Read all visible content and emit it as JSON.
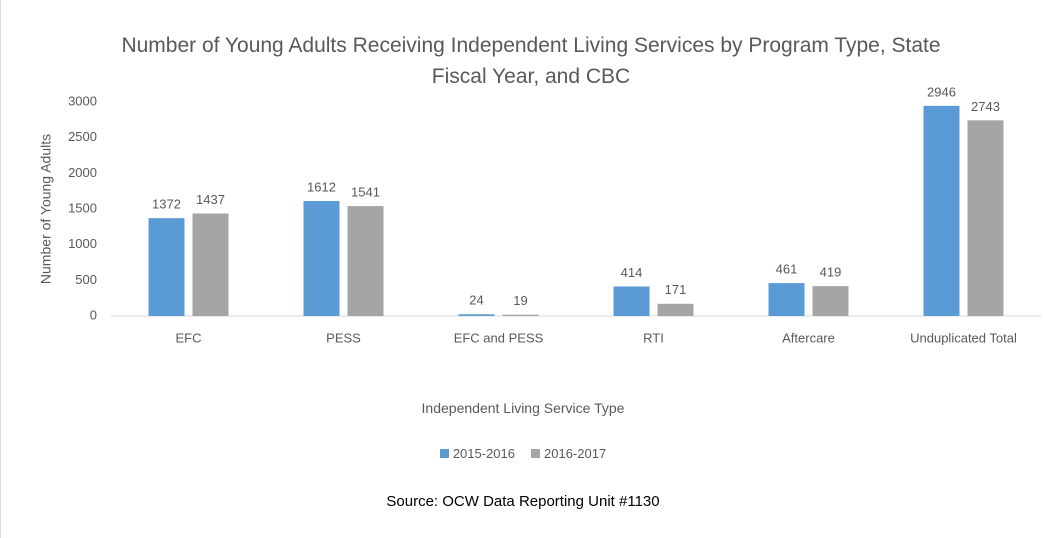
{
  "chart_data": {
    "type": "bar",
    "title": "Number of Young Adults Receiving Independent Living Services by Program Type, State Fiscal Year, and CBC",
    "x_label": "Independent Living Service Type",
    "y_label": "Number of Young Adults",
    "source": "Source: OCW Data Reporting Unit  #1130",
    "categories": [
      "EFC",
      "PESS",
      "EFC and PESS",
      "RTI",
      "Aftercare",
      "Unduplicated Total"
    ],
    "series": [
      {
        "name": "2015-2016",
        "color": "#5b9bd5",
        "values": [
          1372,
          1612,
          24,
          414,
          461,
          2946
        ]
      },
      {
        "name": "2016-2017",
        "color": "#a5a5a5",
        "values": [
          1437,
          1541,
          19,
          171,
          419,
          2743
        ]
      }
    ],
    "ylim": [
      0,
      3000
    ],
    "yticks": [
      0,
      500,
      1000,
      1500,
      2000,
      2500,
      3000
    ],
    "legend": "bottom"
  }
}
